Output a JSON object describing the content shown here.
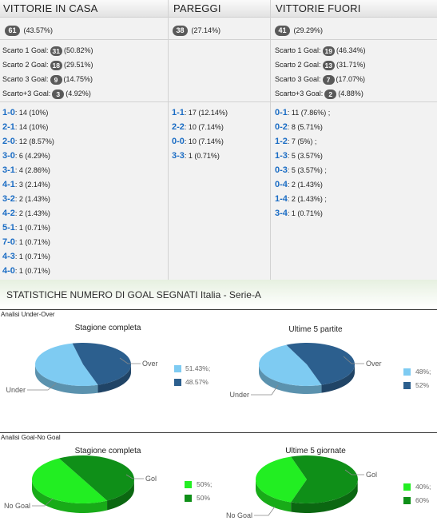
{
  "results": {
    "headers": [
      "VITTORIE IN CASA",
      "PAREGGI",
      "VITTORIE FUORI"
    ],
    "totals": [
      {
        "count": "61",
        "pct": "(43.57%)"
      },
      {
        "count": "38",
        "pct": "(27.14%)"
      },
      {
        "count": "41",
        "pct": "(29.29%)"
      }
    ],
    "home_margins": [
      {
        "label": "Scarto 1 Goal:",
        "count": "31",
        "pct": "(50.82%)"
      },
      {
        "label": "Scarto 2 Goal:",
        "count": "18",
        "pct": "(29.51%)"
      },
      {
        "label": "Scarto 3 Goal:",
        "count": "9",
        "pct": "(14.75%)"
      },
      {
        "label": "Scarto+3 Goal:",
        "count": "3",
        "pct": "(4.92%)"
      }
    ],
    "away_margins": [
      {
        "label": "Scarto 1 Goal:",
        "count": "19",
        "pct": "(46.34%)"
      },
      {
        "label": "Scarto 2 Goal:",
        "count": "13",
        "pct": "(31.71%)"
      },
      {
        "label": "Scarto 3 Goal:",
        "count": "7",
        "pct": "(17.07%)"
      },
      {
        "label": "Scarto+3 Goal:",
        "count": "2",
        "pct": "(4.88%)"
      }
    ],
    "home_scores": [
      {
        "score": "1-0",
        "text": ": 14 (10%)"
      },
      {
        "score": "2-1",
        "text": ": 14 (10%)"
      },
      {
        "score": "2-0",
        "text": ": 12 (8.57%)"
      },
      {
        "score": "3-0",
        "text": ": 6 (4.29%)"
      },
      {
        "score": "3-1",
        "text": ": 4 (2.86%)"
      },
      {
        "score": "4-1",
        "text": ": 3 (2.14%)"
      },
      {
        "score": "3-2",
        "text": ": 2 (1.43%)"
      },
      {
        "score": "4-2",
        "text": ": 2 (1.43%)"
      },
      {
        "score": "5-1",
        "text": ": 1 (0.71%)"
      },
      {
        "score": "7-0",
        "text": ": 1 (0.71%)"
      },
      {
        "score": "4-3",
        "text": ": 1 (0.71%)"
      },
      {
        "score": "4-0",
        "text": ": 1 (0.71%)"
      }
    ],
    "draw_scores": [
      {
        "score": "1-1",
        "text": ": 17 (12.14%)"
      },
      {
        "score": "2-2",
        "text": ": 10 (7.14%)"
      },
      {
        "score": "0-0",
        "text": ": 10 (7.14%)"
      },
      {
        "score": "3-3",
        "text": ": 1 (0.71%)"
      }
    ],
    "away_scores": [
      {
        "score": "0-1",
        "text": ": 11 (7.86%) ;"
      },
      {
        "score": "0-2",
        "text": ": 8 (5.71%)"
      },
      {
        "score": "1-2",
        "text": ": 7 (5%) ;"
      },
      {
        "score": "1-3",
        "text": ": 5 (3.57%)"
      },
      {
        "score": "0-3",
        "text": ": 5 (3.57%) ;"
      },
      {
        "score": "0-4",
        "text": ": 2 (1.43%)"
      },
      {
        "score": "1-4",
        "text": ": 2 (1.43%) ;"
      },
      {
        "score": "3-4",
        "text": ": 1 (0.71%)"
      }
    ]
  },
  "section": {
    "title": "STATISTICHE NUMERO DI GOAL SEGNATI",
    "subtitle": " Italia - Serie-A"
  },
  "colors": {
    "under_light": "#7ecbf2",
    "over_dark": "#2c5f8e",
    "goal_light": "#22ee22",
    "nogoal_dark": "#0f8f18",
    "score_blue": "#1a6cc4",
    "badge_gray": "#5a5a5a"
  },
  "panels": [
    {
      "title": "Analisi Under-Over",
      "charts": [
        {
          "title": "Stagione completa",
          "labels": [
            "Under",
            "Over"
          ],
          "legend": [
            "51.43%;",
            "48.57%"
          ]
        },
        {
          "title": "Ultime 5 partite",
          "labels": [
            "Under",
            "Over"
          ],
          "legend": [
            "48%;",
            "52%"
          ]
        }
      ]
    },
    {
      "title": "Analisi Goal-No Goal",
      "charts": [
        {
          "title": "Stagione completa",
          "labels": [
            "No Goal",
            "Gol"
          ],
          "legend": [
            "50%;",
            "50%"
          ]
        },
        {
          "title": "Ultime 5 giornate",
          "labels": [
            "No Goal",
            "Gol"
          ],
          "legend": [
            "40%;",
            "60%"
          ]
        }
      ]
    }
  ],
  "chart_data": [
    {
      "type": "pie",
      "title": "Stagione completa",
      "panel": "Analisi Under-Over",
      "series": [
        {
          "name": "Under",
          "value": 51.43
        },
        {
          "name": "Over",
          "value": 48.57
        }
      ]
    },
    {
      "type": "pie",
      "title": "Ultime 5 partite",
      "panel": "Analisi Under-Over",
      "series": [
        {
          "name": "Under",
          "value": 48
        },
        {
          "name": "Over",
          "value": 52
        }
      ]
    },
    {
      "type": "pie",
      "title": "Stagione completa",
      "panel": "Analisi Goal-No Goal",
      "series": [
        {
          "name": "No Goal",
          "value": 50
        },
        {
          "name": "Gol",
          "value": 50
        }
      ]
    },
    {
      "type": "pie",
      "title": "Ultime 5 giornate",
      "panel": "Analisi Goal-No Goal",
      "series": [
        {
          "name": "No Goal",
          "value": 40
        },
        {
          "name": "Gol",
          "value": 60
        }
      ]
    }
  ]
}
